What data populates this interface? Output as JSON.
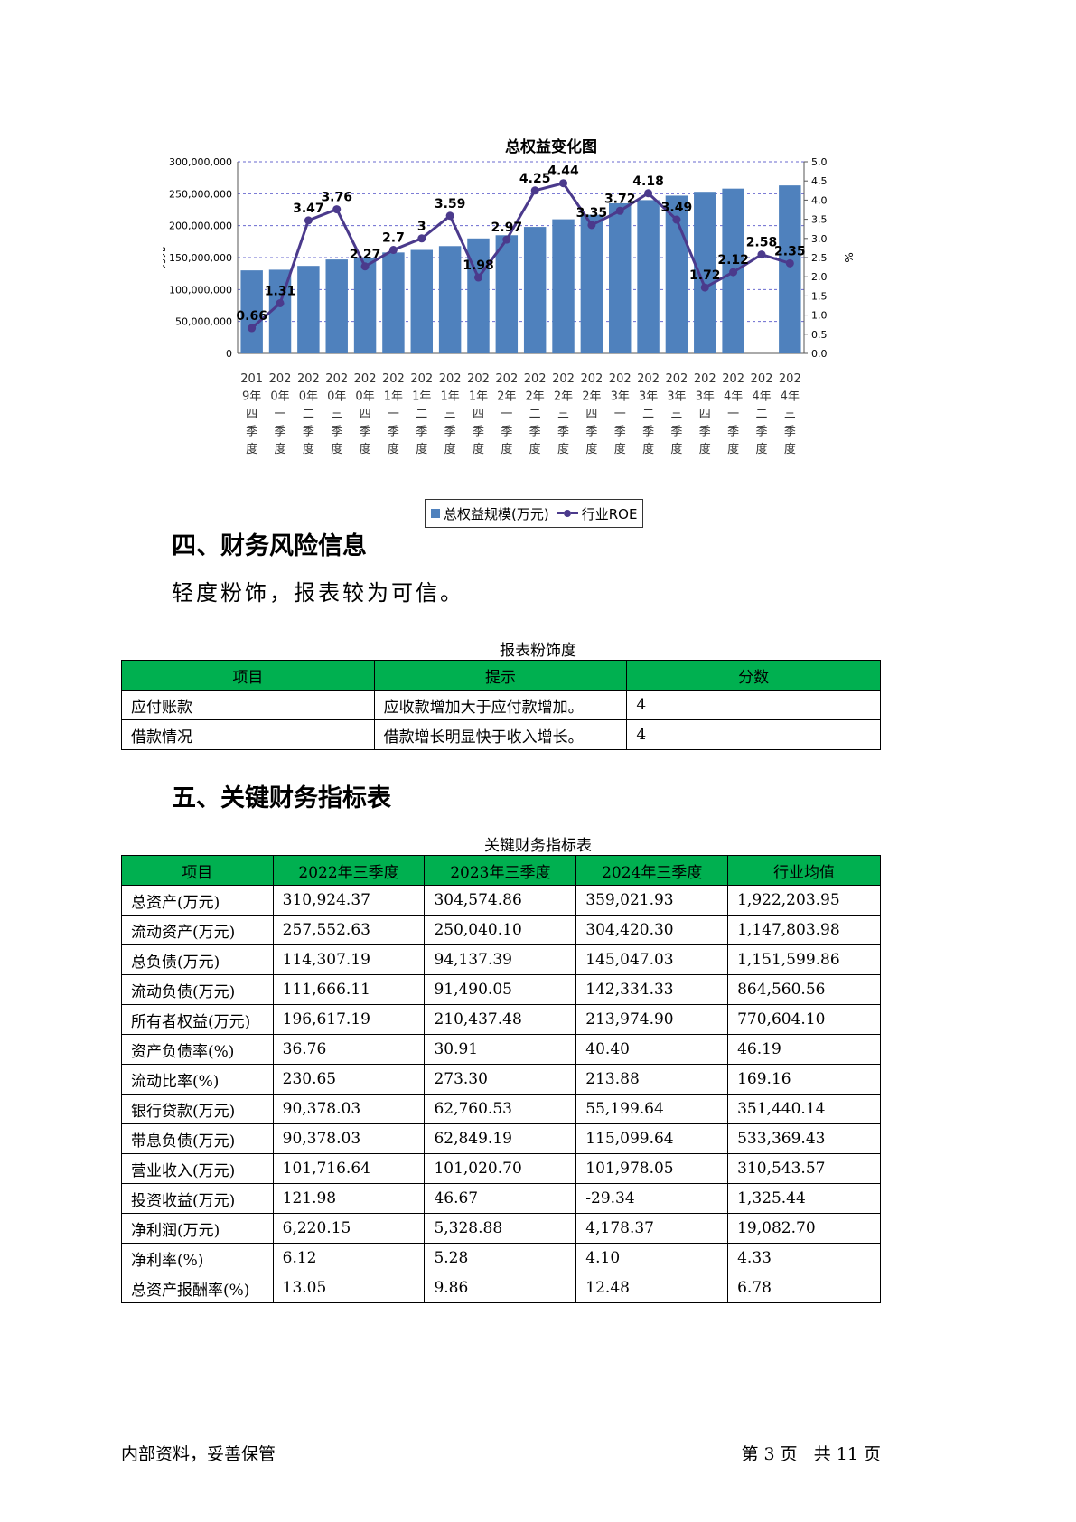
{
  "chart": {
    "title": "总权益变化图",
    "y_left_label": "万元",
    "y_right_label": "%",
    "legend_bar": "总权益规模(万元)",
    "legend_line": "行业ROE"
  },
  "chart_data": {
    "type": "bar",
    "title": "总权益变化图",
    "categories": [
      "2019年四季度",
      "2020年一季度",
      "2020年二季度",
      "2020年三季度",
      "2020年四季度",
      "2021年一季度",
      "2021年二季度",
      "2021年三季度",
      "2021年四季度",
      "2022年一季度",
      "2022年二季度",
      "2022年三季度",
      "2022年四季度",
      "2023年一季度",
      "2023年二季度",
      "2023年三季度",
      "2023年四季度",
      "2024年一季度",
      "2024年二季度",
      "2024年三季度"
    ],
    "category_labels": [
      [
        "201",
        "9年",
        "四",
        "季",
        "度"
      ],
      [
        "202",
        "0年",
        "一",
        "季",
        "度"
      ],
      [
        "202",
        "0年",
        "二",
        "季",
        "度"
      ],
      [
        "202",
        "0年",
        "三",
        "季",
        "度"
      ],
      [
        "202",
        "0年",
        "四",
        "季",
        "度"
      ],
      [
        "202",
        "1年",
        "一",
        "季",
        "度"
      ],
      [
        "202",
        "1年",
        "二",
        "季",
        "度"
      ],
      [
        "202",
        "1年",
        "三",
        "季",
        "度"
      ],
      [
        "202",
        "1年",
        "四",
        "季",
        "度"
      ],
      [
        "202",
        "2年",
        "一",
        "季",
        "度"
      ],
      [
        "202",
        "2年",
        "二",
        "季",
        "度"
      ],
      [
        "202",
        "2年",
        "三",
        "季",
        "度"
      ],
      [
        "202",
        "2年",
        "四",
        "季",
        "度"
      ],
      [
        "202",
        "3年",
        "一",
        "季",
        "度"
      ],
      [
        "202",
        "3年",
        "二",
        "季",
        "度"
      ],
      [
        "202",
        "3年",
        "三",
        "季",
        "度"
      ],
      [
        "202",
        "3年",
        "四",
        "季",
        "度"
      ],
      [
        "202",
        "4年",
        "一",
        "季",
        "度"
      ],
      [
        "202",
        "4年",
        "二",
        "季",
        "度"
      ],
      [
        "202",
        "4年",
        "三",
        "季",
        "度"
      ]
    ],
    "series": [
      {
        "name": "总权益规模(万元)",
        "type": "bar",
        "values": [
          130000000,
          131000000,
          137000000,
          147000000,
          150000000,
          158000000,
          162000000,
          168000000,
          180000000,
          185000000,
          198000000,
          210000000,
          217000000,
          235000000,
          240000000,
          247000000,
          253000000,
          258000000,
          null,
          263000000
        ]
      },
      {
        "name": "行业ROE",
        "type": "line",
        "values": [
          0.66,
          1.31,
          3.47,
          3.76,
          2.27,
          2.7,
          3,
          3.59,
          1.98,
          2.97,
          4.25,
          4.44,
          3.35,
          3.72,
          4.18,
          3.49,
          1.72,
          2.12,
          2.58,
          2.35
        ]
      }
    ],
    "ylabel": "万元",
    "ylim": [
      0,
      300000000
    ],
    "y_ticks": [
      "0",
      "50,000,000",
      "100,000,000",
      "150,000,000",
      "200,000,000",
      "250,000,000",
      "300,000,000"
    ],
    "y2label": "%",
    "y2lim": [
      0,
      5.0
    ],
    "y2_ticks": [
      "0.0",
      "0.5",
      "1.0",
      "1.5",
      "2.0",
      "2.5",
      "3.0",
      "3.5",
      "4.0",
      "4.5",
      "5.0"
    ],
    "grid": true,
    "legend": "bottom"
  },
  "section4": {
    "heading": "四、财务风险信息",
    "text": "轻度粉饰，报表较为可信。",
    "table_caption": "报表粉饰度",
    "headers": [
      "项目",
      "提示",
      "分数"
    ],
    "rows": [
      [
        "应付账款",
        "应收款增加大于应付款增加。",
        "4"
      ],
      [
        "借款情况",
        "借款增长明显快于收入增长。",
        "4"
      ]
    ]
  },
  "section5": {
    "heading": "五、关键财务指标表",
    "table_caption": "关键财务指标表",
    "headers": [
      "项目",
      "2022年三季度",
      "2023年三季度",
      "2024年三季度",
      "行业均值"
    ],
    "rows": [
      [
        "总资产(万元)",
        "310,924.37",
        "304,574.86",
        "359,021.93",
        "1,922,203.95"
      ],
      [
        "流动资产(万元)",
        "257,552.63",
        "250,040.10",
        "304,420.30",
        "1,147,803.98"
      ],
      [
        "总负债(万元)",
        "114,307.19",
        "94,137.39",
        "145,047.03",
        "1,151,599.86"
      ],
      [
        "流动负债(万元)",
        "111,666.11",
        "91,490.05",
        "142,334.33",
        "864,560.56"
      ],
      [
        "所有者权益(万元)",
        "196,617.19",
        "210,437.48",
        "213,974.90",
        "770,604.10"
      ],
      [
        "资产负债率(%)",
        "36.76",
        "30.91",
        "40.40",
        "46.19"
      ],
      [
        "流动比率(%)",
        "230.65",
        "273.30",
        "213.88",
        "169.16"
      ],
      [
        "银行贷款(万元)",
        "90,378.03",
        "62,760.53",
        "55,199.64",
        "351,440.14"
      ],
      [
        "带息负债(万元)",
        "90,378.03",
        "62,849.19",
        "115,099.64",
        "533,369.43"
      ],
      [
        "营业收入(万元)",
        "101,716.64",
        "101,020.70",
        "101,978.05",
        "310,543.57"
      ],
      [
        "投资收益(万元)",
        "121.98",
        "46.67",
        "-29.34",
        "1,325.44"
      ],
      [
        "净利润(万元)",
        "6,220.15",
        "5,328.88",
        "4,178.37",
        "19,082.70"
      ],
      [
        "净利率(%)",
        "6.12",
        "5.28",
        "4.10",
        "4.33"
      ],
      [
        "总资产报酬率(%)",
        "13.05",
        "9.86",
        "12.48",
        "6.78"
      ]
    ]
  },
  "footer": {
    "left": "内部资料，妥善保管",
    "right": "第 3 页   共 11 页"
  },
  "colors": {
    "bar": "#4f81bd",
    "line": "#4b3a8c",
    "grid": "#6a6acf",
    "table_header": "#00b050"
  }
}
